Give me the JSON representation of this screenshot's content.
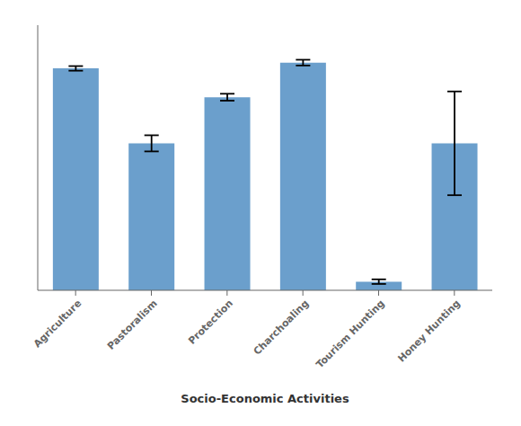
{
  "chart_data": {
    "type": "bar",
    "xlabel": "Socio-Economic Activities",
    "categories": [
      "Agriculture",
      "Pastoralism",
      "Protection",
      "Charchoaling",
      "Tourism Hunting",
      "Honey Hunting"
    ],
    "values": [
      3.85,
      2.55,
      3.35,
      3.95,
      0.15,
      2.55
    ],
    "errors": [
      0.04,
      0.14,
      0.06,
      0.05,
      0.04,
      0.9
    ],
    "color": "#6B9FCC",
    "ylim": [
      0,
      4.6
    ],
    "grid": false,
    "tick_labels": "x"
  }
}
